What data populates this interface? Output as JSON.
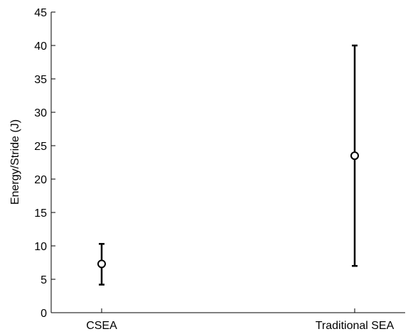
{
  "chart_data": {
    "type": "scatter",
    "title": "",
    "xlabel": "",
    "ylabel": "Energy/Stride (J)",
    "ylim": [
      0,
      45
    ],
    "yticks": [
      0,
      5,
      10,
      15,
      20,
      25,
      30,
      35,
      40,
      45
    ],
    "grid": false,
    "categories": [
      "CSEA",
      "Traditional SEA"
    ],
    "series": [
      {
        "values": [
          7.3,
          23.5
        ],
        "error_low": [
          4.2,
          7.0
        ],
        "error_high": [
          10.3,
          40.0
        ]
      }
    ]
  }
}
